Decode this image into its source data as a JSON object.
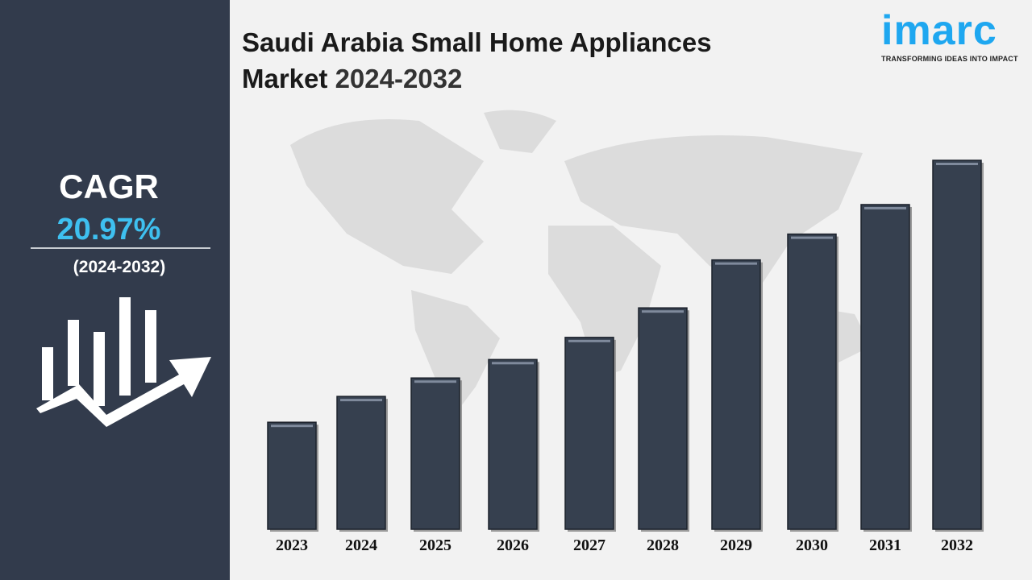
{
  "title_line1": "Saudi Arabia Small Home Appliances",
  "title_line2_word": "Market",
  "title_line2_years": "2024-2032",
  "logo": {
    "word": "imarc",
    "tagline": "TRANSFORMING IDEAS INTO IMPACT",
    "color": "#1ea7f0"
  },
  "sidebar": {
    "cagr_label": "CAGR",
    "cagr_value": "20.97%",
    "cagr_period": "(2024-2032)",
    "accent": "#3ec0f0",
    "background": "#323b4c",
    "icon": "bar-chart-growth-arrow-icon"
  },
  "chart_data": {
    "type": "bar",
    "title": "Saudi Arabia Small Home Appliances Market 2024-2032",
    "categories": [
      "2023",
      "2024",
      "2025",
      "2026",
      "2027",
      "2028",
      "2029",
      "2030",
      "2031",
      "2032"
    ],
    "values": [
      29,
      36,
      41,
      46,
      52,
      60,
      73,
      80,
      88,
      100
    ],
    "value_note": "relative index, no axis printed",
    "bar_color": "#36404f",
    "grid": false,
    "background": "world-map"
  }
}
